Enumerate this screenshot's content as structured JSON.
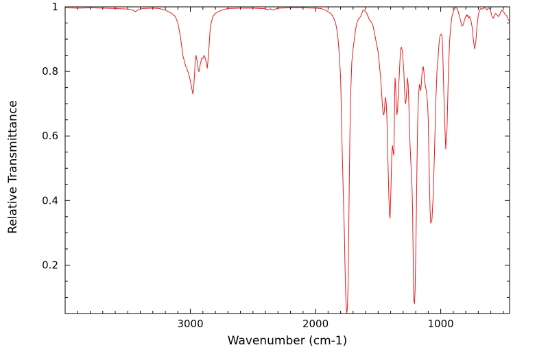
{
  "chart_data": {
    "type": "line",
    "title": "",
    "xlabel": "Wavenumber (cm-1)",
    "ylabel": "Relative Transmittance",
    "x_reversed": true,
    "xlim": [
      4000,
      450
    ],
    "ylim": [
      0.05,
      1.0
    ],
    "x_ticks": [
      3000,
      2000,
      1000
    ],
    "x_tick_labels": [
      "3000",
      "2000",
      "1000"
    ],
    "y_ticks": [
      1,
      0.8,
      0.6,
      0.4,
      0.2
    ],
    "y_tick_labels": [
      "1",
      "0.8",
      "0.6",
      "0.4",
      "0.2"
    ],
    "grid": false,
    "line_color": "#e8191b",
    "series": [
      {
        "x": [
          4000,
          3900,
          3800,
          3700,
          3600,
          3500,
          3460,
          3440,
          3420,
          3380,
          3300,
          3250,
          3200,
          3150,
          3120,
          3100,
          3080,
          3060,
          3040,
          3020,
          3005,
          2990,
          2980,
          2975,
          2965,
          2960,
          2955,
          2945,
          2935,
          2930,
          2922,
          2910,
          2900,
          2890,
          2880,
          2870,
          2865,
          2860,
          2850,
          2840,
          2820,
          2800,
          2750,
          2700,
          2600,
          2500,
          2400,
          2380,
          2360,
          2340,
          2300,
          2200,
          2100,
          2000,
          1960,
          1940,
          1920,
          1900,
          1880,
          1860,
          1850,
          1840,
          1830,
          1820,
          1810,
          1800,
          1795,
          1790,
          1780,
          1770,
          1765,
          1760,
          1755,
          1750,
          1745,
          1740,
          1735,
          1730,
          1725,
          1720,
          1715,
          1710,
          1705,
          1700,
          1690,
          1680,
          1670,
          1660,
          1650,
          1640,
          1630,
          1620,
          1610,
          1600,
          1590,
          1580,
          1570,
          1560,
          1550,
          1540,
          1530,
          1520,
          1510,
          1500,
          1490,
          1480,
          1475,
          1470,
          1465,
          1460,
          1455,
          1450,
          1445,
          1440,
          1435,
          1430,
          1425,
          1420,
          1415,
          1410,
          1405,
          1400,
          1395,
          1390,
          1385,
          1380,
          1375,
          1372,
          1368,
          1365,
          1360,
          1355,
          1350,
          1345,
          1340,
          1335,
          1330,
          1325,
          1320,
          1315,
          1310,
          1305,
          1300,
          1295,
          1290,
          1285,
          1280,
          1275,
          1270,
          1265,
          1260,
          1255,
          1250,
          1245,
          1240,
          1235,
          1230,
          1225,
          1222,
          1218,
          1215,
          1210,
          1205,
          1200,
          1195,
          1190,
          1185,
          1180,
          1175,
          1170,
          1165,
          1160,
          1155,
          1150,
          1145,
          1140,
          1135,
          1130,
          1125,
          1120,
          1115,
          1110,
          1105,
          1100,
          1095,
          1090,
          1085,
          1080,
          1070,
          1060,
          1050,
          1040,
          1030,
          1020,
          1015,
          1010,
          1005,
          1000,
          995,
          990,
          985,
          980,
          970,
          960,
          950,
          940,
          930,
          920,
          910,
          900,
          890,
          880,
          870,
          860,
          850,
          840,
          830,
          820,
          810,
          800,
          795,
          790,
          785,
          780,
          775,
          770,
          760,
          750,
          740,
          730,
          720,
          710,
          700,
          690,
          680,
          670,
          660,
          650,
          640,
          630,
          620,
          610,
          600,
          590,
          580,
          570,
          560,
          550,
          540,
          530,
          520,
          510,
          500,
          490,
          480,
          470,
          460,
          450
        ],
        "y": [
          0.997,
          0.996,
          0.997,
          0.996,
          0.995,
          0.993,
          0.99,
          0.985,
          0.99,
          0.995,
          0.996,
          0.995,
          0.99,
          0.98,
          0.97,
          0.95,
          0.91,
          0.85,
          0.82,
          0.8,
          0.78,
          0.75,
          0.73,
          0.74,
          0.8,
          0.84,
          0.85,
          0.83,
          0.8,
          0.8,
          0.82,
          0.84,
          0.84,
          0.85,
          0.84,
          0.82,
          0.81,
          0.83,
          0.88,
          0.94,
          0.97,
          0.98,
          0.99,
          0.995,
          0.996,
          0.996,
          0.994,
          0.99,
          0.994,
          0.99,
          0.996,
          0.997,
          0.997,
          0.996,
          0.995,
          0.993,
          0.99,
          0.985,
          0.98,
          0.97,
          0.96,
          0.95,
          0.93,
          0.9,
          0.85,
          0.78,
          0.7,
          0.6,
          0.45,
          0.3,
          0.2,
          0.12,
          0.07,
          0.05,
          0.07,
          0.14,
          0.3,
          0.48,
          0.62,
          0.72,
          0.78,
          0.83,
          0.85,
          0.87,
          0.9,
          0.93,
          0.95,
          0.96,
          0.965,
          0.97,
          0.98,
          0.99,
          0.99,
          0.985,
          0.98,
          0.97,
          0.96,
          0.955,
          0.95,
          0.94,
          0.92,
          0.9,
          0.88,
          0.86,
          0.82,
          0.78,
          0.75,
          0.72,
          0.69,
          0.67,
          0.665,
          0.68,
          0.71,
          0.72,
          0.7,
          0.66,
          0.58,
          0.5,
          0.42,
          0.36,
          0.345,
          0.4,
          0.48,
          0.55,
          0.57,
          0.55,
          0.54,
          0.6,
          0.72,
          0.78,
          0.75,
          0.7,
          0.665,
          0.68,
          0.72,
          0.76,
          0.8,
          0.84,
          0.87,
          0.875,
          0.87,
          0.86,
          0.83,
          0.8,
          0.75,
          0.71,
          0.7,
          0.72,
          0.75,
          0.78,
          0.76,
          0.7,
          0.63,
          0.57,
          0.53,
          0.49,
          0.45,
          0.38,
          0.28,
          0.17,
          0.09,
          0.08,
          0.12,
          0.22,
          0.35,
          0.5,
          0.62,
          0.7,
          0.74,
          0.76,
          0.75,
          0.74,
          0.76,
          0.79,
          0.81,
          0.815,
          0.8,
          0.78,
          0.76,
          0.75,
          0.74,
          0.72,
          0.7,
          0.65,
          0.55,
          0.45,
          0.37,
          0.33,
          0.34,
          0.42,
          0.55,
          0.7,
          0.8,
          0.85,
          0.88,
          0.9,
          0.91,
          0.915,
          0.915,
          0.91,
          0.88,
          0.8,
          0.66,
          0.56,
          0.62,
          0.78,
          0.89,
          0.94,
          0.97,
          0.985,
          0.995,
          0.998,
          0.995,
          0.985,
          0.97,
          0.955,
          0.94,
          0.945,
          0.96,
          0.97,
          0.975,
          0.97,
          0.975,
          0.97,
          0.965,
          0.97,
          0.96,
          0.94,
          0.9,
          0.87,
          0.89,
          0.94,
          0.975,
          0.99,
          0.995,
          0.993,
          0.995,
          0.998,
          0.995,
          0.99,
          0.997,
          0.995,
          0.985,
          0.97,
          0.965,
          0.975,
          0.98,
          0.975,
          0.97,
          0.975,
          0.985,
          0.99,
          0.985,
          0.98,
          0.975,
          0.97,
          0.96,
          0.955
        ]
      }
    ]
  }
}
